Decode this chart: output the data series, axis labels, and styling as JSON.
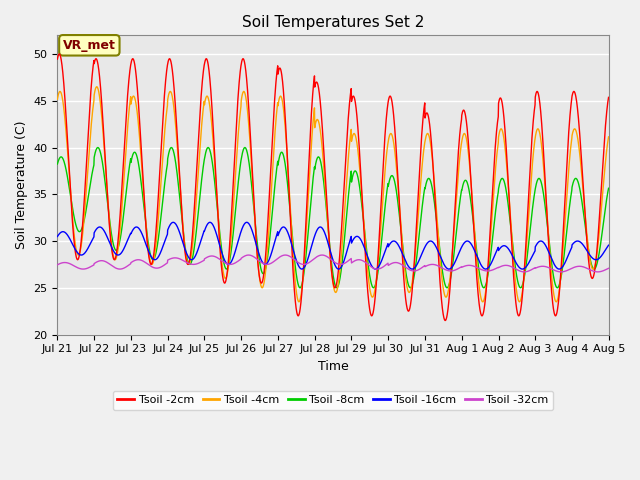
{
  "title": "Soil Temperatures Set 2",
  "xlabel": "Time",
  "ylabel": "Soil Temperature (C)",
  "ylim": [
    20,
    52
  ],
  "yticks": [
    20,
    25,
    30,
    35,
    40,
    45,
    50
  ],
  "fig_facecolor": "#f0f0f0",
  "ax_facecolor": "#e8e8e8",
  "annotation_text": "VR_met",
  "annotation_bg": "#ffffc0",
  "annotation_border": "#808000",
  "annotation_text_color": "#800000",
  "series": [
    {
      "label": "Tsoil -2cm",
      "color": "#ff0000"
    },
    {
      "label": "Tsoil -4cm",
      "color": "#ffa500"
    },
    {
      "label": "Tsoil -8cm",
      "color": "#00cc00"
    },
    {
      "label": "Tsoil -16cm",
      "color": "#0000ff"
    },
    {
      "label": "Tsoil -32cm",
      "color": "#cc44cc"
    }
  ],
  "n_days": 15,
  "ppd": 144,
  "x_tick_labels": [
    "Jul 21",
    "Jul 22",
    "Jul 23",
    "Jul 24",
    "Jul 25",
    "Jul 26",
    "Jul 27",
    "Jul 28",
    "Jul 29",
    "Jul 30",
    "Jul 31",
    "Aug 1",
    "Aug 2",
    "Aug 3",
    "Aug 4",
    "Aug 5"
  ],
  "peak2": [
    50.0,
    49.5,
    49.5,
    49.5,
    49.5,
    49.5,
    48.5,
    47.0,
    45.5,
    45.5,
    43.7,
    44.0,
    45.3,
    46.0,
    46.0,
    45.5
  ],
  "trough2": [
    28.0,
    28.0,
    27.5,
    27.5,
    25.5,
    25.5,
    22.0,
    25.0,
    22.0,
    22.5,
    21.5,
    22.0,
    22.0,
    22.0,
    26.0,
    26.0
  ],
  "peak4": [
    46.0,
    46.5,
    45.5,
    46.0,
    45.5,
    46.0,
    45.5,
    43.0,
    41.5,
    41.5,
    41.5,
    41.5,
    42.0,
    42.0,
    42.0,
    42.0
  ],
  "trough4": [
    28.5,
    28.0,
    27.5,
    27.5,
    26.0,
    25.0,
    23.5,
    24.5,
    24.0,
    24.5,
    24.0,
    23.5,
    23.5,
    23.5,
    27.0,
    27.0
  ],
  "peak8": [
    39.0,
    40.0,
    39.5,
    40.0,
    40.0,
    40.0,
    39.5,
    39.0,
    37.5,
    37.0,
    36.7,
    36.5,
    36.7,
    36.7,
    36.7,
    36.7
  ],
  "trough8": [
    31.0,
    29.0,
    28.0,
    27.5,
    27.0,
    26.5,
    25.0,
    25.0,
    25.0,
    25.0,
    25.0,
    25.0,
    25.0,
    25.0,
    27.0,
    27.0
  ],
  "peak16": [
    31.0,
    31.5,
    31.5,
    32.0,
    32.0,
    32.0,
    31.5,
    31.5,
    30.5,
    30.0,
    30.0,
    30.0,
    29.5,
    30.0,
    30.0,
    30.0
  ],
  "trough16": [
    28.5,
    28.5,
    28.0,
    28.0,
    27.5,
    27.5,
    27.0,
    27.0,
    27.0,
    27.0,
    27.0,
    27.0,
    27.0,
    27.0,
    28.0,
    28.0
  ],
  "peak32": [
    27.7,
    27.9,
    28.0,
    28.2,
    28.4,
    28.5,
    28.5,
    28.5,
    28.0,
    27.7,
    27.5,
    27.4,
    27.4,
    27.3,
    27.3,
    27.3
  ],
  "trough32": [
    27.0,
    27.0,
    27.1,
    27.5,
    27.5,
    27.5,
    27.5,
    27.5,
    27.0,
    26.8,
    26.8,
    26.8,
    26.7,
    26.7,
    26.7,
    26.7
  ]
}
